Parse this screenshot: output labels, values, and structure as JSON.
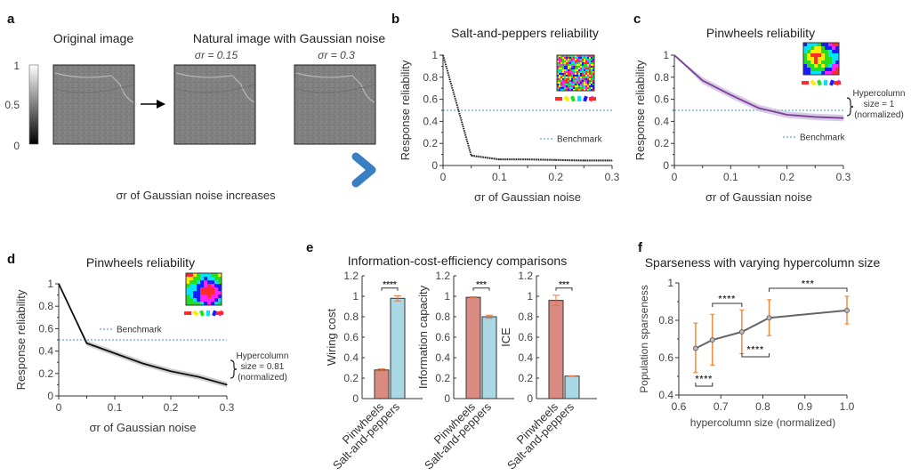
{
  "figure": {
    "panel_a": {
      "letter": "a",
      "title_original": "Original image",
      "title_noise": "Natural image with Gaussian noise",
      "sigma1_label": "σr = 0.15",
      "sigma2_label": "σr = 0.3",
      "colorbar_ticks": [
        "1",
        "0.5",
        "0"
      ],
      "arrow_caption": "σr of Gaussian noise increases",
      "arrow_color": "#3a7fc4"
    }
  },
  "chart_data": [
    {
      "id": "b",
      "letter": "b",
      "type": "line",
      "title": "Salt-and-peppers reliability",
      "xlabel": "σr of Gaussian noise",
      "ylabel": "Response reliability",
      "x": [
        0,
        0.05,
        0.1,
        0.15,
        0.2,
        0.25,
        0.3
      ],
      "series": [
        {
          "name": "Salt-and-peppers",
          "values": [
            1.0,
            0.09,
            0.055,
            0.055,
            0.05,
            0.045,
            0.045
          ],
          "band": 0.01,
          "color": "#222222",
          "style": "dotted"
        }
      ],
      "benchmark": {
        "label": "Benchmark",
        "value": 0.5,
        "color": "#3b8fb5"
      },
      "xlim": [
        0,
        0.3
      ],
      "ylim": [
        0,
        1
      ],
      "xticks": [
        "0",
        "0.1",
        "0.2",
        "0.3"
      ],
      "yticks": [
        "0",
        "0.2",
        "0.4",
        "0.6",
        "0.8",
        "1"
      ]
    },
    {
      "id": "c",
      "letter": "c",
      "type": "line",
      "title": "Pinwheels reliability",
      "xlabel": "σr of Gaussian noise",
      "ylabel": "Response reliability",
      "x": [
        0,
        0.05,
        0.1,
        0.15,
        0.2,
        0.25,
        0.3
      ],
      "series": [
        {
          "name": "Pinwheels",
          "values": [
            1.0,
            0.77,
            0.64,
            0.52,
            0.46,
            0.44,
            0.43
          ],
          "band": 0.03,
          "color": "#7b3f98",
          "style": "solid"
        }
      ],
      "benchmark": {
        "label": "Benchmark",
        "value": 0.5,
        "color": "#3b8fb5"
      },
      "annotation": [
        "Hypercolumn",
        "size = 1",
        "(normalized)"
      ],
      "xlim": [
        0,
        0.3
      ],
      "ylim": [
        0,
        1
      ],
      "xticks": [
        "0",
        "0.1",
        "0.2",
        "0.3"
      ],
      "yticks": [
        "0",
        "0.2",
        "0.4",
        "0.6",
        "0.8",
        "1"
      ]
    },
    {
      "id": "d",
      "letter": "d",
      "type": "line",
      "title": "Pinwheels reliability",
      "xlabel": "σr of Gaussian noise",
      "ylabel": "Response reliability",
      "x": [
        0,
        0.05,
        0.1,
        0.15,
        0.2,
        0.25,
        0.3
      ],
      "series": [
        {
          "name": "Pinwheels",
          "values": [
            1.0,
            0.47,
            0.38,
            0.29,
            0.22,
            0.17,
            0.1
          ],
          "band": 0.025,
          "color": "#111111",
          "style": "solid"
        }
      ],
      "benchmark": {
        "label": "Benchmark",
        "value": 0.5,
        "color": "#3b8fb5"
      },
      "annotation": [
        "Hypercolumn",
        "size = 0.81",
        "(normalized)"
      ],
      "xlim": [
        0,
        0.3
      ],
      "ylim": [
        0,
        1
      ],
      "xticks": [
        "0",
        "0.1",
        "0.2",
        "0.3"
      ],
      "yticks": [
        "0",
        "0.2",
        "0.4",
        "0.6",
        "0.8",
        "1"
      ]
    },
    {
      "id": "e",
      "letter": "e",
      "type": "bar",
      "title": "Information-cost-efficiency comparisons",
      "categories": [
        "Pinwheels",
        "Salt-and-peppers"
      ],
      "colors": [
        "#d98b82",
        "#aad8e4"
      ],
      "error_color": "#e8743b",
      "ylim": [
        0,
        1.2
      ],
      "yticks": [
        "0",
        "0.2",
        "0.4",
        "0.6",
        "0.8",
        "1",
        "1.2"
      ],
      "subplots": [
        {
          "ylabel": "Wiring cost",
          "values": [
            0.28,
            0.98
          ],
          "errors": [
            0.01,
            0.025
          ],
          "significance": "****"
        },
        {
          "ylabel": "Information capacity",
          "values": [
            0.99,
            0.8
          ],
          "errors": [
            0.005,
            0.015
          ],
          "significance": "***"
        },
        {
          "ylabel": "ICE",
          "values": [
            0.96,
            0.22
          ],
          "errors": [
            0.05,
            0.003
          ],
          "significance": "***"
        }
      ]
    },
    {
      "id": "f",
      "letter": "f",
      "type": "line",
      "title": "Sparseness with varying hypercolumn size",
      "xlabel": "hypercolumn size (normalized)",
      "ylabel": "Population sparseness",
      "x": [
        0.64,
        0.68,
        0.75,
        0.815,
        1.0
      ],
      "series": [
        {
          "name": "Population sparseness",
          "values": [
            0.65,
            0.695,
            0.738,
            0.813,
            0.853
          ],
          "err_low": [
            0.52,
            0.56,
            0.622,
            0.718,
            0.78
          ],
          "err_high": [
            0.785,
            0.832,
            0.855,
            0.91,
            0.928
          ],
          "color": "#666666"
        }
      ],
      "error_color": "#f08a3c",
      "significance": [
        {
          "from": 0.64,
          "to": 0.68,
          "label": "****",
          "position": "below"
        },
        {
          "from": 0.68,
          "to": 0.75,
          "label": "****",
          "position": "above"
        },
        {
          "from": 0.75,
          "to": 0.815,
          "label": "****",
          "position": "below"
        },
        {
          "from": 0.815,
          "to": 1.0,
          "label": "***",
          "position": "above"
        }
      ],
      "xlim": [
        0.6,
        1.0
      ],
      "ylim": [
        0.4,
        1.0
      ],
      "xticks": [
        "0.6",
        "0.7",
        "0.8",
        "0.9",
        "1.0"
      ],
      "yticks": [
        "0.4",
        "0.6",
        "0.8",
        "1"
      ]
    }
  ]
}
